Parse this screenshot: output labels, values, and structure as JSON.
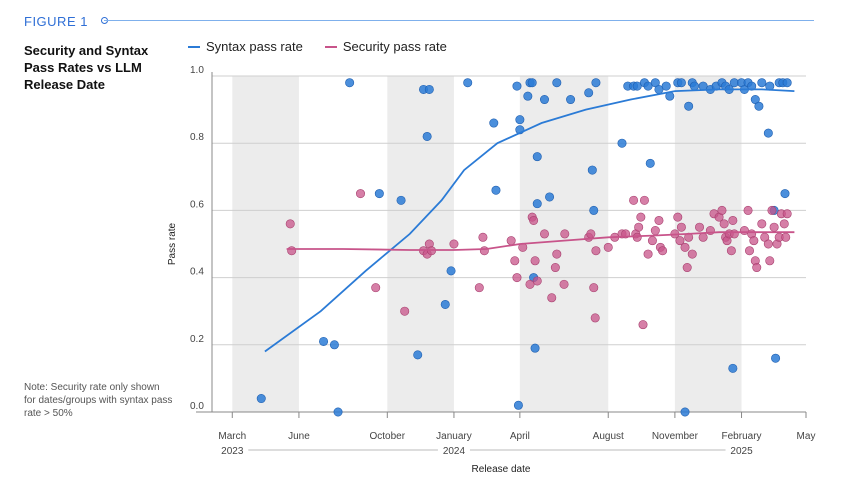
{
  "figure_label": "FIGURE 1",
  "note": "Note: Security rate only shown for dates/groups with syntax pass rate > 50%",
  "colors": {
    "syntax": "#2b7bd6",
    "security": "#c8548a",
    "band": "#ececec",
    "accent": "#2f6fd6"
  },
  "chart_data": {
    "type": "scatter",
    "title": "Security and Syntax Pass Rates vs LLM Release Date",
    "xlabel": "Release date",
    "ylabel": "Pass rate",
    "xlim": [
      "2023-02-01",
      "2025-05-01"
    ],
    "ylim": [
      0,
      1
    ],
    "grid": true,
    "legend_position": "top-left",
    "y_ticks": [
      "0.0",
      "0.2",
      "0.4",
      "0.6",
      "0.8",
      "1.0"
    ],
    "x_ticks": [
      {
        "date": "2023-03-01",
        "label": "March"
      },
      {
        "date": "2023-06-01",
        "label": "June"
      },
      {
        "date": "2023-10-01",
        "label": "October"
      },
      {
        "date": "2024-01-01",
        "label": "January"
      },
      {
        "date": "2024-04-01",
        "label": "April"
      },
      {
        "date": "2024-08-01",
        "label": "August"
      },
      {
        "date": "2024-11-01",
        "label": "November"
      },
      {
        "date": "2025-02-01",
        "label": "February"
      },
      {
        "date": "2025-05-01",
        "label": "May"
      }
    ],
    "year_labels": [
      {
        "date": "2023-03-01",
        "label": "2023"
      },
      {
        "date": "2024-01-01",
        "label": "2024"
      },
      {
        "date": "2025-02-01",
        "label": "2025"
      }
    ],
    "shaded_periods": [
      [
        "2023-03-01",
        "2023-06-01"
      ],
      [
        "2023-10-01",
        "2024-01-01"
      ],
      [
        "2024-04-01",
        "2024-08-01"
      ],
      [
        "2024-11-01",
        "2025-02-01"
      ]
    ],
    "series": [
      {
        "name": "Syntax pass rate",
        "trend": [
          [
            "2023-04-15",
            0.18
          ],
          [
            "2023-07-01",
            0.3
          ],
          [
            "2023-09-01",
            0.42
          ],
          [
            "2023-11-01",
            0.53
          ],
          [
            "2023-12-15",
            0.63
          ],
          [
            "2024-01-15",
            0.72
          ],
          [
            "2024-03-01",
            0.8
          ],
          [
            "2024-05-01",
            0.86
          ],
          [
            "2024-07-01",
            0.9
          ],
          [
            "2024-09-01",
            0.93
          ],
          [
            "2024-11-01",
            0.955
          ],
          [
            "2025-01-01",
            0.96
          ],
          [
            "2025-03-01",
            0.96
          ],
          [
            "2025-04-15",
            0.955
          ]
        ],
        "points": [
          [
            "2023-04-10",
            0.04
          ],
          [
            "2023-07-05",
            0.21
          ],
          [
            "2023-07-20",
            0.2
          ],
          [
            "2023-07-25",
            0.0
          ],
          [
            "2023-08-10",
            0.98
          ],
          [
            "2023-09-20",
            0.65
          ],
          [
            "2023-10-20",
            0.63
          ],
          [
            "2023-11-12",
            0.17
          ],
          [
            "2023-11-20",
            0.96
          ],
          [
            "2023-11-25",
            0.82
          ],
          [
            "2023-11-28",
            0.96
          ],
          [
            "2023-12-20",
            0.32
          ],
          [
            "2023-12-28",
            0.42
          ],
          [
            "2024-01-20",
            0.98
          ],
          [
            "2024-02-25",
            0.86
          ],
          [
            "2024-02-28",
            0.66
          ],
          [
            "2024-03-28",
            0.97
          ],
          [
            "2024-04-01",
            0.87
          ],
          [
            "2024-04-01",
            0.84
          ],
          [
            "2024-03-30",
            0.02
          ],
          [
            "2024-04-15",
            0.98
          ],
          [
            "2024-04-18",
            0.98
          ],
          [
            "2024-04-12",
            0.94
          ],
          [
            "2024-04-25",
            0.76
          ],
          [
            "2024-04-25",
            0.62
          ],
          [
            "2024-04-20",
            0.4
          ],
          [
            "2024-04-22",
            0.19
          ],
          [
            "2024-05-05",
            0.93
          ],
          [
            "2024-05-12",
            0.64
          ],
          [
            "2024-05-22",
            0.98
          ],
          [
            "2024-06-10",
            0.93
          ],
          [
            "2024-07-05",
            0.95
          ],
          [
            "2024-07-10",
            0.72
          ],
          [
            "2024-07-12",
            0.6
          ],
          [
            "2024-07-15",
            0.98
          ],
          [
            "2024-08-20",
            0.8
          ],
          [
            "2024-08-28",
            0.97
          ],
          [
            "2024-09-05",
            0.97
          ],
          [
            "2024-09-10",
            0.97
          ],
          [
            "2024-09-20",
            0.98
          ],
          [
            "2024-09-25",
            0.97
          ],
          [
            "2024-09-28",
            0.74
          ],
          [
            "2024-10-05",
            0.98
          ],
          [
            "2024-10-10",
            0.96
          ],
          [
            "2024-10-20",
            0.97
          ],
          [
            "2024-10-25",
            0.94
          ],
          [
            "2024-11-05",
            0.98
          ],
          [
            "2024-11-10",
            0.98
          ],
          [
            "2024-11-15",
            0.0
          ],
          [
            "2024-11-20",
            0.91
          ],
          [
            "2024-11-25",
            0.98
          ],
          [
            "2024-11-28",
            0.97
          ],
          [
            "2024-12-10",
            0.97
          ],
          [
            "2024-12-20",
            0.96
          ],
          [
            "2024-12-28",
            0.97
          ],
          [
            "2025-01-05",
            0.98
          ],
          [
            "2025-01-10",
            0.97
          ],
          [
            "2025-01-15",
            0.96
          ],
          [
            "2025-01-20",
            0.13
          ],
          [
            "2025-01-22",
            0.98
          ],
          [
            "2025-02-01",
            0.98
          ],
          [
            "2025-02-05",
            0.96
          ],
          [
            "2025-02-10",
            0.98
          ],
          [
            "2025-02-15",
            0.97
          ],
          [
            "2025-02-20",
            0.93
          ],
          [
            "2025-02-25",
            0.91
          ],
          [
            "2025-03-01",
            0.98
          ],
          [
            "2025-03-10",
            0.83
          ],
          [
            "2025-03-12",
            0.97
          ],
          [
            "2025-03-18",
            0.6
          ],
          [
            "2025-03-20",
            0.16
          ],
          [
            "2025-03-25",
            0.98
          ],
          [
            "2025-03-30",
            0.98
          ],
          [
            "2025-04-02",
            0.65
          ],
          [
            "2025-04-05",
            0.98
          ]
        ]
      },
      {
        "name": "Security pass rate",
        "trend": [
          [
            "2023-05-15",
            0.485
          ],
          [
            "2023-08-01",
            0.485
          ],
          [
            "2023-11-01",
            0.482
          ],
          [
            "2024-01-01",
            0.482
          ],
          [
            "2024-02-15",
            0.485
          ],
          [
            "2024-04-01",
            0.5
          ],
          [
            "2024-06-01",
            0.51
          ],
          [
            "2024-08-01",
            0.52
          ],
          [
            "2024-10-01",
            0.525
          ],
          [
            "2024-11-20",
            0.53
          ],
          [
            "2025-01-01",
            0.535
          ],
          [
            "2025-02-15",
            0.535
          ],
          [
            "2025-04-15",
            0.535
          ]
        ],
        "points": [
          [
            "2023-05-20",
            0.56
          ],
          [
            "2023-05-22",
            0.48
          ],
          [
            "2023-08-25",
            0.65
          ],
          [
            "2023-09-15",
            0.37
          ],
          [
            "2023-10-25",
            0.3
          ],
          [
            "2023-11-20",
            0.48
          ],
          [
            "2023-11-25",
            0.47
          ],
          [
            "2023-11-28",
            0.5
          ],
          [
            "2023-12-01",
            0.48
          ],
          [
            "2024-01-01",
            0.5
          ],
          [
            "2024-02-05",
            0.37
          ],
          [
            "2024-02-10",
            0.52
          ],
          [
            "2024-02-12",
            0.48
          ],
          [
            "2024-03-20",
            0.51
          ],
          [
            "2024-03-25",
            0.45
          ],
          [
            "2024-03-28",
            0.4
          ],
          [
            "2024-04-05",
            0.49
          ],
          [
            "2024-04-15",
            0.38
          ],
          [
            "2024-04-18",
            0.58
          ],
          [
            "2024-04-20",
            0.57
          ],
          [
            "2024-04-22",
            0.45
          ],
          [
            "2024-04-25",
            0.39
          ],
          [
            "2024-05-05",
            0.53
          ],
          [
            "2024-05-15",
            0.34
          ],
          [
            "2024-05-20",
            0.43
          ],
          [
            "2024-05-22",
            0.47
          ],
          [
            "2024-06-01",
            0.38
          ],
          [
            "2024-06-02",
            0.53
          ],
          [
            "2024-07-05",
            0.52
          ],
          [
            "2024-07-08",
            0.53
          ],
          [
            "2024-07-12",
            0.37
          ],
          [
            "2024-07-14",
            0.28
          ],
          [
            "2024-07-15",
            0.48
          ],
          [
            "2024-08-01",
            0.49
          ],
          [
            "2024-08-10",
            0.52
          ],
          [
            "2024-08-20",
            0.53
          ],
          [
            "2024-08-25",
            0.53
          ],
          [
            "2024-09-05",
            0.63
          ],
          [
            "2024-09-08",
            0.53
          ],
          [
            "2024-09-10",
            0.52
          ],
          [
            "2024-09-12",
            0.55
          ],
          [
            "2024-09-15",
            0.58
          ],
          [
            "2024-09-18",
            0.26
          ],
          [
            "2024-09-20",
            0.63
          ],
          [
            "2024-09-25",
            0.47
          ],
          [
            "2024-10-01",
            0.51
          ],
          [
            "2024-10-05",
            0.54
          ],
          [
            "2024-10-10",
            0.57
          ],
          [
            "2024-10-12",
            0.49
          ],
          [
            "2024-10-15",
            0.48
          ],
          [
            "2024-11-01",
            0.53
          ],
          [
            "2024-11-05",
            0.58
          ],
          [
            "2024-11-08",
            0.51
          ],
          [
            "2024-11-10",
            0.55
          ],
          [
            "2024-11-15",
            0.49
          ],
          [
            "2024-11-18",
            0.43
          ],
          [
            "2024-11-20",
            0.52
          ],
          [
            "2024-11-25",
            0.47
          ],
          [
            "2024-12-05",
            0.55
          ],
          [
            "2024-12-10",
            0.52
          ],
          [
            "2024-12-20",
            0.54
          ],
          [
            "2024-12-25",
            0.59
          ],
          [
            "2025-01-01",
            0.58
          ],
          [
            "2025-01-05",
            0.6
          ],
          [
            "2025-01-08",
            0.56
          ],
          [
            "2025-01-10",
            0.52
          ],
          [
            "2025-01-12",
            0.51
          ],
          [
            "2025-01-15",
            0.53
          ],
          [
            "2025-01-18",
            0.48
          ],
          [
            "2025-01-20",
            0.57
          ],
          [
            "2025-01-22",
            0.53
          ],
          [
            "2025-02-05",
            0.54
          ],
          [
            "2025-02-10",
            0.6
          ],
          [
            "2025-02-12",
            0.48
          ],
          [
            "2025-02-15",
            0.53
          ],
          [
            "2025-02-18",
            0.51
          ],
          [
            "2025-02-20",
            0.45
          ],
          [
            "2025-02-22",
            0.43
          ],
          [
            "2025-03-01",
            0.56
          ],
          [
            "2025-03-05",
            0.52
          ],
          [
            "2025-03-10",
            0.5
          ],
          [
            "2025-03-12",
            0.45
          ],
          [
            "2025-03-15",
            0.6
          ],
          [
            "2025-03-18",
            0.55
          ],
          [
            "2025-03-22",
            0.5
          ],
          [
            "2025-03-25",
            0.52
          ],
          [
            "2025-03-28",
            0.59
          ],
          [
            "2025-04-01",
            0.56
          ],
          [
            "2025-04-03",
            0.52
          ],
          [
            "2025-04-05",
            0.59
          ]
        ]
      }
    ]
  }
}
